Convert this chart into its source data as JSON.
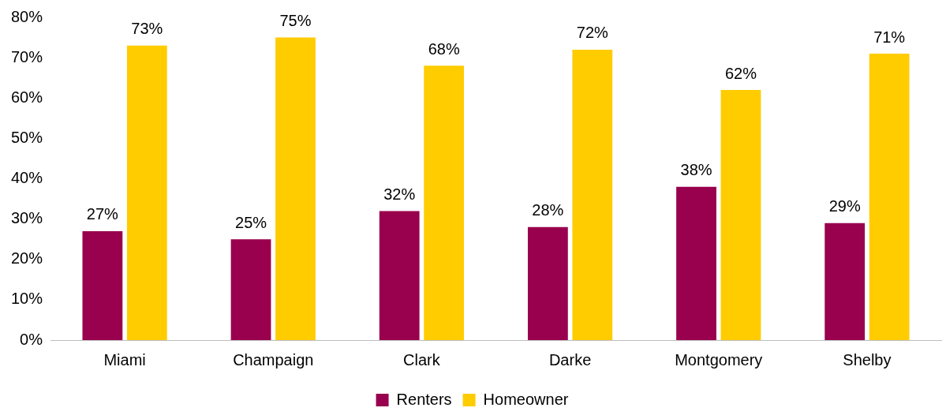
{
  "chart_data": {
    "type": "bar",
    "categories": [
      "Miami",
      "Champaign",
      "Clark",
      "Darke",
      "Montgomery",
      "Shelby"
    ],
    "series": [
      {
        "name": "Renters",
        "color": "#99004d",
        "values": [
          27,
          25,
          32,
          28,
          38,
          29
        ],
        "value_labels": [
          "27%",
          "25%",
          "32%",
          "28%",
          "38%",
          "29%"
        ]
      },
      {
        "name": "Homeowner",
        "color": "#ffcc00",
        "values": [
          73,
          75,
          68,
          72,
          62,
          71
        ],
        "value_labels": [
          "73%",
          "75%",
          "68%",
          "72%",
          "62%",
          "71%"
        ]
      }
    ],
    "ylim": [
      0,
      80
    ],
    "yticks": [
      {
        "value": 0,
        "label": "0%"
      },
      {
        "value": 10,
        "label": "10%"
      },
      {
        "value": 20,
        "label": "20%"
      },
      {
        "value": 30,
        "label": "30%"
      },
      {
        "value": 40,
        "label": "40%"
      },
      {
        "value": 50,
        "label": "50%"
      },
      {
        "value": 60,
        "label": "60%"
      },
      {
        "value": 70,
        "label": "70%"
      },
      {
        "value": 80,
        "label": "80%"
      }
    ],
    "grid": false,
    "legend": "bottom"
  }
}
